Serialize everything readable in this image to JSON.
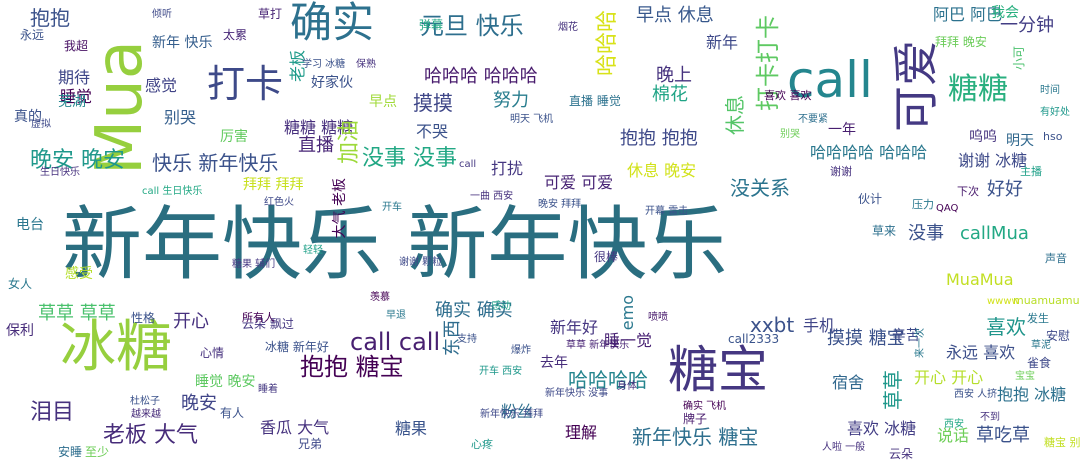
{
  "words": [
    {
      "text": "新年快乐 新年快乐",
      "color": "#2a6e80",
      "vertical": false
    },
    {
      "text": "Mua",
      "color": "#96cf3e",
      "vertical": true
    },
    {
      "text": "call",
      "color": "#24868e",
      "vertical": false
    },
    {
      "text": "冰糖",
      "color": "#96cf3e",
      "vertical": false
    },
    {
      "text": "糖宝",
      "color": "#453781",
      "vertical": false
    },
    {
      "text": "可爱",
      "color": "#443983",
      "vertical": true
    },
    {
      "text": "确实",
      "color": "#2d718e",
      "vertical": false
    },
    {
      "text": "打卡",
      "color": "#3e4a89",
      "vertical": false
    },
    {
      "text": "糖糖",
      "color": "#29af7f",
      "vertical": false
    },
    {
      "text": "打卡打卡",
      "color": "#5ec962",
      "vertical": true
    },
    {
      "text": "哈哈哈",
      "color": "#d8e219",
      "vertical": true
    },
    {
      "text": "元旦 快乐",
      "color": "#2e6f8e",
      "vertical": false
    },
    {
      "text": "抱抱",
      "color": "#3b528b",
      "vertical": false
    },
    {
      "text": "早点 休息",
      "color": "#38588c",
      "vertical": false
    },
    {
      "text": "阿巴 阿巴",
      "color": "#2c728e",
      "vertical": false
    },
    {
      "text": "拜拜 晚安",
      "color": "#6ccd5a",
      "vertical": false
    },
    {
      "text": "一分钟",
      "color": "#433e85",
      "vertical": false
    },
    {
      "text": "我会",
      "color": "#29af7f",
      "vertical": false
    },
    {
      "text": "新年",
      "color": "#3e4989",
      "vertical": false
    },
    {
      "text": "晚上",
      "color": "#46327e",
      "vertical": false
    },
    {
      "text": "老板",
      "color": "#1e9b8a",
      "vertical": true
    },
    {
      "text": "好家伙",
      "color": "#3b528b",
      "vertical": false
    },
    {
      "text": "哈哈哈 哈哈哈",
      "color": "#481b6d",
      "vertical": false
    },
    {
      "text": "期待",
      "color": "#3f4788",
      "vertical": false
    },
    {
      "text": "睡觉",
      "color": "#440154",
      "vertical": false
    },
    {
      "text": "感觉",
      "color": "#414487",
      "vertical": false
    },
    {
      "text": "摸摸",
      "color": "#3f4788",
      "vertical": false
    },
    {
      "text": "努力",
      "color": "#287d8e",
      "vertical": false
    },
    {
      "text": "棉花",
      "color": "#20a486",
      "vertical": false
    },
    {
      "text": "休息",
      "color": "#54c568",
      "vertical": true
    },
    {
      "text": "别哭",
      "color": "#355f8d",
      "vertical": false
    },
    {
      "text": "糖糖 糖糖",
      "color": "#472f7d",
      "vertical": false
    },
    {
      "text": "不哭",
      "color": "#3b528b",
      "vertical": false
    },
    {
      "text": "抱抱 抱抱",
      "color": "#3e4989",
      "vertical": false
    },
    {
      "text": "一年",
      "color": "#481f70",
      "vertical": false
    },
    {
      "text": "呜呜",
      "color": "#46337e",
      "vertical": false
    },
    {
      "text": "明天",
      "color": "#31688e",
      "vertical": false
    },
    {
      "text": "加油",
      "color": "#9dd93b",
      "vertical": true
    },
    {
      "text": "直播",
      "color": "#482677",
      "vertical": false
    },
    {
      "text": "没事 没事",
      "color": "#22a884",
      "vertical": false
    },
    {
      "text": "快乐 新年快乐",
      "color": "#3b528b",
      "vertical": false
    },
    {
      "text": "哈哈哈哈 哈哈哈",
      "color": "#2a788e",
      "vertical": false
    },
    {
      "text": "谢谢 冰糖",
      "color": "#3e4a89",
      "vertical": false
    },
    {
      "text": "晚安 晚安",
      "color": "#1f988b",
      "vertical": false
    },
    {
      "text": "拜拜 拜拜",
      "color": "#c8e020",
      "vertical": false
    },
    {
      "text": "打扰",
      "color": "#453781",
      "vertical": false
    },
    {
      "text": "休息 晚安",
      "color": "#d2e21b",
      "vertical": false
    },
    {
      "text": "可爱 可爱",
      "color": "#482475",
      "vertical": false
    },
    {
      "text": "没关系",
      "color": "#2b748e",
      "vertical": false
    },
    {
      "text": "好好",
      "color": "#3b528b",
      "vertical": false
    },
    {
      "text": "没事",
      "color": "#3b528b",
      "vertical": false
    },
    {
      "text": "callMua",
      "color": "#22a884",
      "vertical": false
    },
    {
      "text": "MuaMua",
      "color": "#c2df23",
      "vertical": false
    },
    {
      "text": "草草 草草",
      "color": "#4ac16d",
      "vertical": false
    },
    {
      "text": "确实 确实",
      "color": "#2e6e8e",
      "vertical": false
    },
    {
      "text": "开心",
      "color": "#46307e",
      "vertical": false
    },
    {
      "text": "call call",
      "color": "#482071",
      "vertical": false
    },
    {
      "text": "新年好",
      "color": "#453581",
      "vertical": false
    },
    {
      "text": "xxbt",
      "color": "#3b528b",
      "vertical": false
    },
    {
      "text": "手机",
      "color": "#404588",
      "vertical": false
    },
    {
      "text": "喜欢",
      "color": "#1f958b",
      "vertical": false
    },
    {
      "text": "抱抱 糖宝",
      "color": "#440154",
      "vertical": false
    },
    {
      "text": "摸摸 糖宝",
      "color": "#3b528b",
      "vertical": false
    },
    {
      "text": "哈哈哈哈",
      "color": "#25858e",
      "vertical": false
    },
    {
      "text": "泪目",
      "color": "#46317e",
      "vertical": false
    },
    {
      "text": "老板 大气",
      "color": "#472c7a",
      "vertical": false
    },
    {
      "text": "粉丝",
      "color": "#2e6f8e",
      "vertical": false
    },
    {
      "text": "新年快乐 糖宝",
      "color": "#2e6f8e",
      "vertical": false
    },
    {
      "text": "理解",
      "color": "#440154",
      "vertical": false
    },
    {
      "text": "晚安",
      "color": "#404588",
      "vertical": false
    },
    {
      "text": "糖果",
      "color": "#3a548c",
      "vertical": false
    },
    {
      "text": "香瓜 大气",
      "color": "#46327e",
      "vertical": false
    },
    {
      "text": "喜欢 冰糖",
      "color": "#433e85",
      "vertical": false
    },
    {
      "text": "说话",
      "color": "#6ece58",
      "vertical": false
    },
    {
      "text": "草吃草",
      "color": "#3b528b",
      "vertical": false
    },
    {
      "text": "抱抱 冰糖",
      "color": "#2d718e",
      "vertical": false
    },
    {
      "text": "草草",
      "color": "#1f988b",
      "vertical": true
    },
    {
      "text": "开心 开心",
      "color": "#b5de2b",
      "vertical": false
    },
    {
      "text": "宿舍",
      "color": "#31688e",
      "vertical": false
    },
    {
      "text": "永远 喜欢",
      "color": "#3c4f8a",
      "vertical": false
    },
    {
      "text": "睡一觉",
      "color": "#482173",
      "vertical": false
    },
    {
      "text": "睡觉 晚安",
      "color": "#5ec962",
      "vertical": false
    },
    {
      "text": "东西",
      "color": "#2f6c8e",
      "vertical": true
    },
    {
      "text": "去年",
      "color": "#472d7b",
      "vertical": false
    },
    {
      "text": "云朵 飘过",
      "color": "#453882",
      "vertical": false
    },
    {
      "text": "冰糖 新年好",
      "color": "#3b528b",
      "vertical": false
    },
    {
      "text": "emo",
      "color": "#2a788e",
      "vertical": true
    },
    {
      "text": "call2333",
      "color": "#3a548c",
      "vertical": false
    },
    {
      "text": "大气 老板",
      "color": "#440154",
      "vertical": true
    },
    {
      "text": "电台",
      "color": "#2a768e",
      "vertical": false
    },
    {
      "text": "芜湖",
      "color": "#24868e",
      "vertical": false
    },
    {
      "text": "我超",
      "color": "#471063",
      "vertical": false
    },
    {
      "text": "永远",
      "color": "#3b528b",
      "vertical": false
    },
    {
      "text": "新年 快乐",
      "color": "#355e8d",
      "vertical": false
    },
    {
      "text": "太累",
      "color": "#482878",
      "vertical": false
    },
    {
      "text": "直播 睡觉",
      "color": "#2c728e",
      "vertical": false
    },
    {
      "text": "下次",
      "color": "#481b6d",
      "vertical": false
    },
    {
      "text": "压力",
      "color": "#2a788e",
      "vertical": false
    },
    {
      "text": "伙计",
      "color": "#3b528b",
      "vertical": false
    },
    {
      "text": "草来",
      "color": "#2d708e",
      "vertical": false
    },
    {
      "text": "草打",
      "color": "#482576",
      "vertical": false
    },
    {
      "text": "弹幕",
      "color": "#22a884",
      "vertical": false
    },
    {
      "text": "早点",
      "color": "#a0da39",
      "vertical": false
    },
    {
      "text": "喜欢 喜欢",
      "color": "#440154",
      "vertical": false
    },
    {
      "text": "谢谢",
      "color": "#46317e",
      "vertical": false
    },
    {
      "text": "厉害",
      "color": "#63cb5f",
      "vertical": false
    },
    {
      "text": "辛苦",
      "color": "#3e4989",
      "vertical": false
    },
    {
      "text": "雀食",
      "color": "#3e4989",
      "vertical": false
    },
    {
      "text": "安慰",
      "color": "#3e4989",
      "vertical": false
    },
    {
      "text": "声音",
      "color": "#2e6f8e",
      "vertical": false
    },
    {
      "text": "主播",
      "color": "#1fa088",
      "vertical": false
    },
    {
      "text": "hso",
      "color": "#3b528b",
      "vertical": false
    },
    {
      "text": "小可",
      "color": "#4ac16d",
      "vertical": true
    },
    {
      "text": "真的",
      "color": "#3b528b",
      "vertical": false
    },
    {
      "text": "很棒",
      "color": "#453781",
      "vertical": false
    },
    {
      "text": "感受",
      "color": "#b5de2b",
      "vertical": false
    },
    {
      "text": "女人",
      "color": "#2a788e",
      "vertical": false
    },
    {
      "text": "保利",
      "color": "#472c7a",
      "vertical": false
    },
    {
      "text": "性格",
      "color": "#3b528b",
      "vertical": false
    },
    {
      "text": "心情",
      "color": "#46317e",
      "vertical": false
    },
    {
      "text": "睡着",
      "color": "#453882",
      "vertical": false
    },
    {
      "text": "有人",
      "color": "#3b528b",
      "vertical": false
    },
    {
      "text": "安睡",
      "color": "#2e6e8e",
      "vertical": false
    },
    {
      "text": "至少",
      "color": "#6ece58",
      "vertical": false
    },
    {
      "text": "兄弟",
      "color": "#3e4989",
      "vertical": false
    },
    {
      "text": "发生",
      "color": "#2a788e",
      "vertical": false
    },
    {
      "text": "云朵",
      "color": "#46327e",
      "vertical": false
    },
    {
      "text": "所有人",
      "color": "#440154",
      "vertical": false
    },
    {
      "text": "muamuamua",
      "color": "#b8de29",
      "vertical": false
    },
    {
      "text": "糖宝 别哭",
      "color": "#c2df23",
      "vertical": false
    },
    {
      "text": "心疼",
      "color": "#1f988b",
      "vertical": false
    },
    {
      "text": "牌子",
      "color": "#481b6d",
      "vertical": false
    },
    {
      "text": "杜松子",
      "color": "#3b528b",
      "vertical": false
    },
    {
      "text": "越来越",
      "color": "#472c7a",
      "vertical": false
    },
    {
      "text": "新年快乐 没事",
      "color": "#3e4a89",
      "vertical": false
    },
    {
      "text": "新年快乐 拜拜",
      "color": "#3e4989",
      "vertical": false
    },
    {
      "text": "call",
      "color": "#453882",
      "vertical": false
    },
    {
      "text": "倾听",
      "color": "#3e4989",
      "vertical": false
    },
    {
      "text": "虚拟",
      "color": "#3e4989",
      "vertical": false
    },
    {
      "text": "保熟",
      "color": "#46327e",
      "vertical": false
    },
    {
      "text": "学习 冰糖",
      "color": "#3b528b",
      "vertical": false
    },
    {
      "text": "开车",
      "color": "#2a788e",
      "vertical": false
    },
    {
      "text": "一曲 西安",
      "color": "#46317e",
      "vertical": false
    },
    {
      "text": "晚安 拜拜",
      "color": "#3b528b",
      "vertical": false
    },
    {
      "text": "开幕 雷击",
      "color": "#3b528b",
      "vertical": false
    },
    {
      "text": "不要紧",
      "color": "#2e6f8e",
      "vertical": false
    },
    {
      "text": "时间",
      "color": "#2a788e",
      "vertical": false
    },
    {
      "text": "有好处",
      "color": "#1f988b",
      "vertical": false
    },
    {
      "text": "明天 飞机",
      "color": "#3b528b",
      "vertical": false
    },
    {
      "text": "糖果 辅们",
      "color": "#453882",
      "vertical": false
    },
    {
      "text": "call 生日快乐",
      "color": "#22a884",
      "vertical": false
    },
    {
      "text": "生日快乐",
      "color": "#46317e",
      "vertical": false
    },
    {
      "text": "红色火",
      "color": "#3e4989",
      "vertical": false
    },
    {
      "text": "QAQ",
      "color": "#440154",
      "vertical": false
    },
    {
      "text": "wwww",
      "color": "#d2e21b",
      "vertical": false
    },
    {
      "text": "来一次",
      "color": "#2a788e",
      "vertical": true
    },
    {
      "text": "草泥",
      "color": "#2a788e",
      "vertical": false
    },
    {
      "text": "宝宝",
      "color": "#6ece58",
      "vertical": false
    },
    {
      "text": "西安 人挤",
      "color": "#3b528b",
      "vertical": false
    },
    {
      "text": "西安",
      "color": "#22a884",
      "vertical": false
    },
    {
      "text": "不到",
      "color": "#46327e",
      "vertical": false
    },
    {
      "text": "别哭",
      "color": "#6ece58",
      "vertical": false
    },
    {
      "text": "人啦 一般",
      "color": "#46317e",
      "vertical": false
    },
    {
      "text": "身体",
      "color": "#46327e",
      "vertical": false
    },
    {
      "text": "支持",
      "color": "#3b528b",
      "vertical": false
    },
    {
      "text": "喷喷",
      "color": "#481b6d",
      "vertical": false
    },
    {
      "text": "烟花",
      "color": "#46337e",
      "vertical": false
    },
    {
      "text": "轻轻",
      "color": "#1fa088",
      "vertical": false
    },
    {
      "text": "羡慕",
      "color": "#440154",
      "vertical": false
    },
    {
      "text": "谢谢 颗粒",
      "color": "#3e4989",
      "vertical": false
    },
    {
      "text": "早退",
      "color": "#2a788e",
      "vertical": false
    },
    {
      "text": "开车 西安",
      "color": "#1f988b",
      "vertical": false
    },
    {
      "text": "爆炸",
      "color": "#3b528b",
      "vertical": false
    },
    {
      "text": "草草 新年快乐",
      "color": "#482475",
      "vertical": false
    },
    {
      "text": "感动",
      "color": "#1fa088",
      "vertical": false
    },
    {
      "text": "确实 飞机",
      "color": "#440154",
      "vertical": false
    }
  ]
}
